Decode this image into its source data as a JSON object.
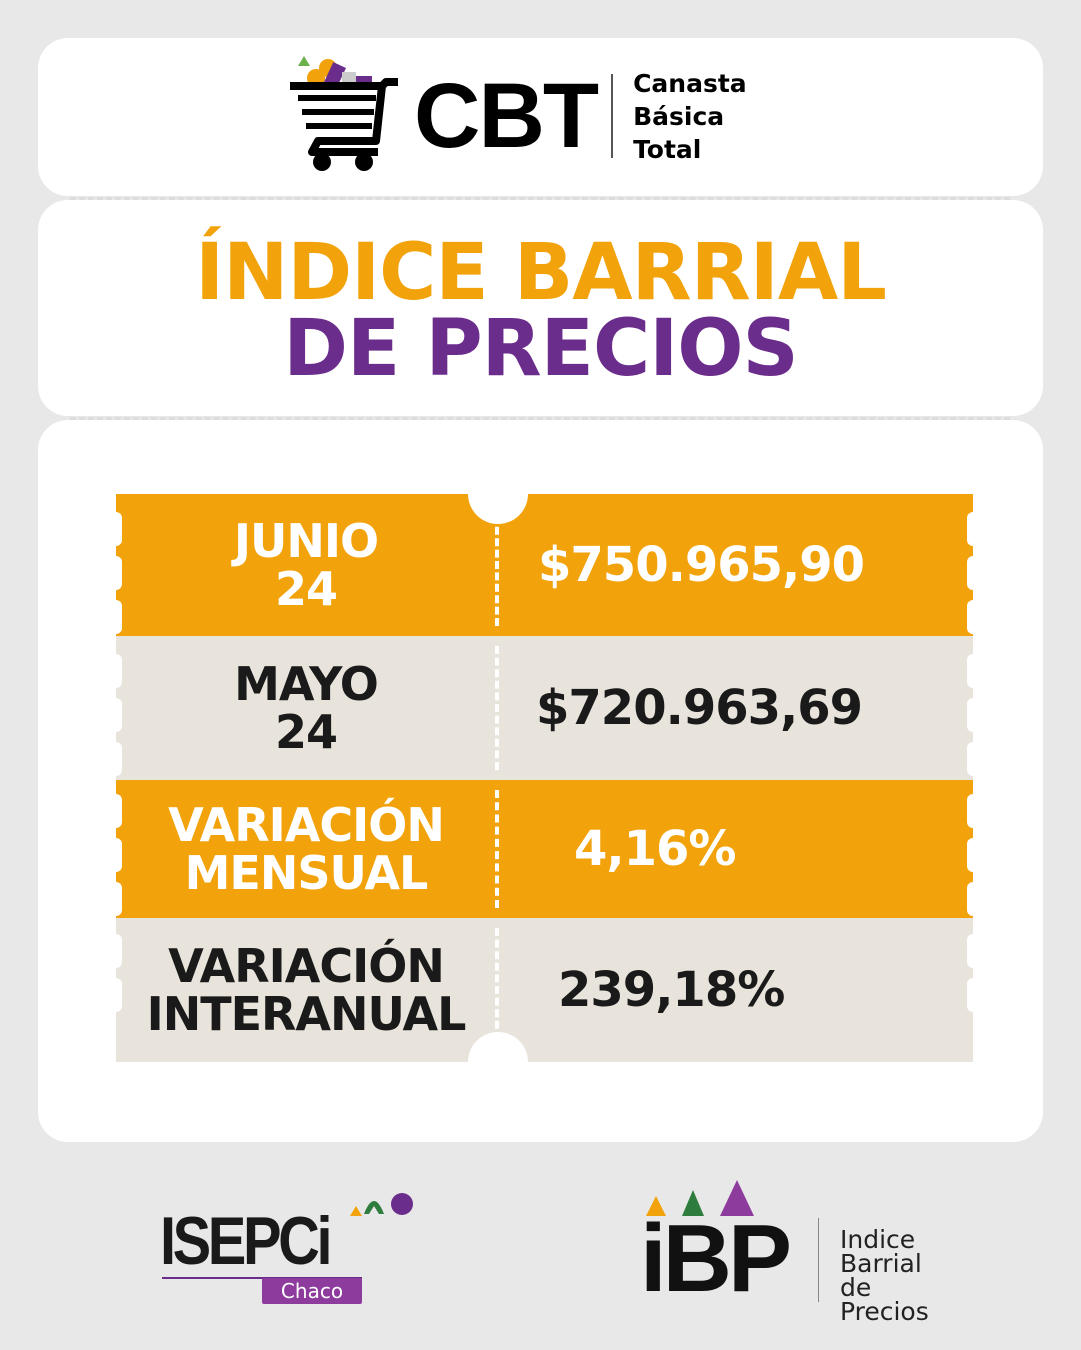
{
  "header": {
    "logo": "CBT",
    "subtitle_lines": [
      "Canasta",
      "Básica",
      "Total"
    ]
  },
  "title": {
    "line1": "ÍNDICE BARRIAL",
    "line2": "DE PRECIOS"
  },
  "rows": [
    {
      "label_lines": [
        "JUNIO",
        "24"
      ],
      "value": "$750.965,90",
      "style": "orange"
    },
    {
      "label_lines": [
        "MAYO",
        "24"
      ],
      "value": "$720.963,69",
      "style": "beige"
    },
    {
      "label_lines": [
        "VARIACIÓN",
        "MENSUAL"
      ],
      "value": "4,16%",
      "style": "orange"
    },
    {
      "label_lines": [
        "VARIACIÓN",
        "INTERANUAL"
      ],
      "value": "239,18%",
      "style": "beige"
    }
  ],
  "footer": {
    "isepci": "ISEPCi",
    "isepci_sub": "Chaco",
    "ibp": "iBP",
    "ibp_text": [
      "Indice",
      "Barrial",
      "de Precios"
    ]
  },
  "colors": {
    "orange": "#f2a20b",
    "purple": "#6b2d8c",
    "beige": "#e8e4dc",
    "green": "#2e7d3e"
  }
}
